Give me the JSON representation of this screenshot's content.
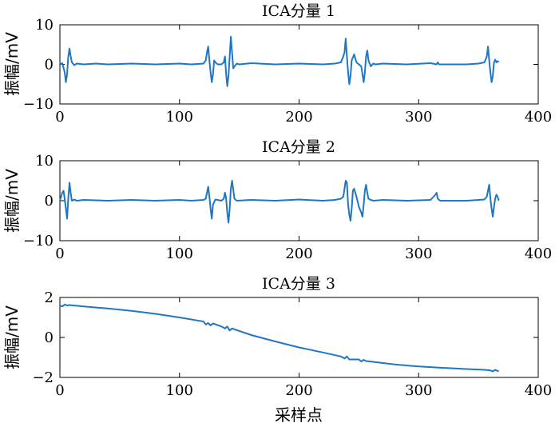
{
  "chart_data": [
    {
      "type": "line",
      "title": "ICA分量 1",
      "ylabel": "振幅/mV",
      "xlabel": "",
      "xlim": [
        0,
        400
      ],
      "ylim": [
        -10,
        10
      ],
      "xticks": [
        "0",
        "100",
        "200",
        "300",
        "400"
      ],
      "yticks": [
        "10",
        "0",
        "−10"
      ],
      "xtick_values": [
        0,
        100,
        200,
        300,
        400
      ],
      "ytick_values": [
        10,
        0,
        -10
      ],
      "grid": false,
      "series": [
        {
          "color": "#1f77c4",
          "x": [
            0,
            2,
            4,
            5,
            6,
            7,
            8,
            9,
            10,
            12,
            14,
            20,
            30,
            40,
            60,
            80,
            100,
            110,
            120,
            122,
            123,
            124,
            125,
            126,
            127,
            128,
            129,
            130,
            132,
            135,
            137,
            138,
            139,
            140,
            141,
            142,
            143,
            144,
            145,
            146,
            148,
            150,
            160,
            180,
            200,
            220,
            230,
            235,
            237,
            238,
            239,
            240,
            241,
            242,
            243,
            244,
            246,
            248,
            252,
            253,
            254,
            255,
            256,
            257,
            258,
            259,
            260,
            262,
            264,
            270,
            290,
            310,
            315,
            316,
            317,
            320,
            340,
            350,
            355,
            357,
            358,
            359,
            360,
            361,
            362,
            363,
            364,
            365,
            366,
            367
          ],
          "y": [
            0,
            0.3,
            -2,
            -4.5,
            -2.5,
            2,
            4,
            2,
            0.5,
            -0.2,
            0.2,
            0,
            0.2,
            0,
            0.2,
            0,
            0.2,
            0,
            0.2,
            1,
            3,
            4.5,
            1,
            -2,
            -4.5,
            -2.5,
            1,
            0.5,
            0,
            0,
            0.5,
            2,
            -2.5,
            -5.5,
            -3,
            2,
            7,
            3,
            -1,
            -0.5,
            0.2,
            0,
            0.3,
            0,
            0.2,
            0,
            0.2,
            0.5,
            2,
            3,
            6.5,
            2,
            -2,
            -5,
            -3,
            1,
            2.5,
            0.5,
            -0.5,
            -2.5,
            -4.5,
            -2,
            2,
            3.5,
            1,
            0.2,
            -0.5,
            0.2,
            0,
            0.2,
            0,
            0.3,
            0,
            0.5,
            0,
            0,
            0,
            0.2,
            0.5,
            2,
            4.5,
            1,
            -2,
            -4.5,
            -3,
            0.5,
            1.2,
            0.5,
            0.8,
            0.6
          ]
        }
      ]
    },
    {
      "type": "line",
      "title": "ICA分量 2",
      "ylabel": "振幅/mV",
      "xlabel": "",
      "xlim": [
        0,
        400
      ],
      "ylim": [
        -10,
        10
      ],
      "xticks": [
        "0",
        "100",
        "200",
        "300",
        "400"
      ],
      "yticks": [
        "10",
        "0",
        "−10"
      ],
      "xtick_values": [
        0,
        100,
        200,
        300,
        400
      ],
      "ytick_values": [
        10,
        0,
        -10
      ],
      "grid": false,
      "series": [
        {
          "color": "#1f77c4",
          "x": [
            0,
            1,
            2,
            3,
            4,
            5,
            6,
            7,
            8,
            9,
            10,
            12,
            14,
            20,
            40,
            60,
            80,
            100,
            110,
            120,
            122,
            123,
            124,
            125,
            126,
            127,
            128,
            130,
            135,
            137,
            138,
            139,
            140,
            141,
            142,
            143,
            144,
            146,
            148,
            160,
            180,
            200,
            220,
            230,
            235,
            237,
            238,
            239,
            240,
            241,
            242,
            243,
            244,
            245,
            246,
            248,
            250,
            252,
            253,
            254,
            255,
            256,
            257,
            258,
            260,
            262,
            270,
            290,
            310,
            314,
            315,
            316,
            318,
            340,
            355,
            357,
            358,
            359,
            360,
            361,
            362,
            363,
            364,
            365,
            366,
            367
          ],
          "y": [
            0,
            1,
            2,
            2.5,
            0.5,
            -2,
            -4.5,
            0.5,
            4.5,
            2,
            0,
            0.3,
            0,
            0.2,
            0,
            0.2,
            0,
            0.2,
            0,
            0.2,
            0.5,
            2,
            3.5,
            1,
            -2,
            -4.5,
            -1,
            0.3,
            0,
            0.5,
            2,
            0.5,
            -3,
            -5.5,
            -2,
            3,
            5,
            0.5,
            0,
            0.2,
            0,
            0.3,
            0,
            0.2,
            0.5,
            1,
            3,
            5,
            4.5,
            -1,
            -3.5,
            -5,
            -2,
            2.5,
            3,
            1,
            -1.5,
            -3,
            -4,
            -1,
            2.5,
            4,
            2,
            0.5,
            0.2,
            0,
            0.2,
            0,
            0.2,
            1.5,
            2,
            0.5,
            0,
            0,
            0.3,
            1,
            2.5,
            4,
            0.5,
            -2,
            -4,
            -1.5,
            0.5,
            1.5,
            1,
            0
          ]
        }
      ]
    },
    {
      "type": "line",
      "title": "ICA分量 3",
      "ylabel": "振幅/mV",
      "xlabel": "采样点",
      "xlim": [
        0,
        400
      ],
      "ylim": [
        -2,
        2
      ],
      "xticks": [
        "0",
        "100",
        "200",
        "300",
        "400"
      ],
      "yticks": [
        "2",
        "0",
        "−2"
      ],
      "xtick_values": [
        0,
        100,
        200,
        300,
        400
      ],
      "ytick_values": [
        2,
        0,
        -2
      ],
      "grid": false,
      "series": [
        {
          "color": "#1f77c4",
          "x": [
            0,
            2,
            4,
            6,
            8,
            20,
            40,
            60,
            80,
            100,
            115,
            120,
            122,
            124,
            126,
            128,
            135,
            138,
            140,
            142,
            144,
            160,
            180,
            200,
            220,
            235,
            238,
            240,
            242,
            250,
            252,
            254,
            256,
            280,
            300,
            320,
            340,
            355,
            360,
            362,
            364,
            366,
            367
          ],
          "y": [
            1.6,
            1.55,
            1.65,
            1.6,
            1.62,
            1.55,
            1.45,
            1.33,
            1.18,
            1.0,
            0.85,
            0.8,
            0.65,
            0.72,
            0.6,
            0.7,
            0.55,
            0.45,
            0.55,
            0.35,
            0.45,
            0.12,
            -0.2,
            -0.5,
            -0.75,
            -0.95,
            -1.05,
            -0.95,
            -1.1,
            -1.1,
            -1.2,
            -1.12,
            -1.18,
            -1.35,
            -1.45,
            -1.52,
            -1.58,
            -1.62,
            -1.65,
            -1.7,
            -1.62,
            -1.68,
            -1.66
          ]
        }
      ]
    }
  ]
}
